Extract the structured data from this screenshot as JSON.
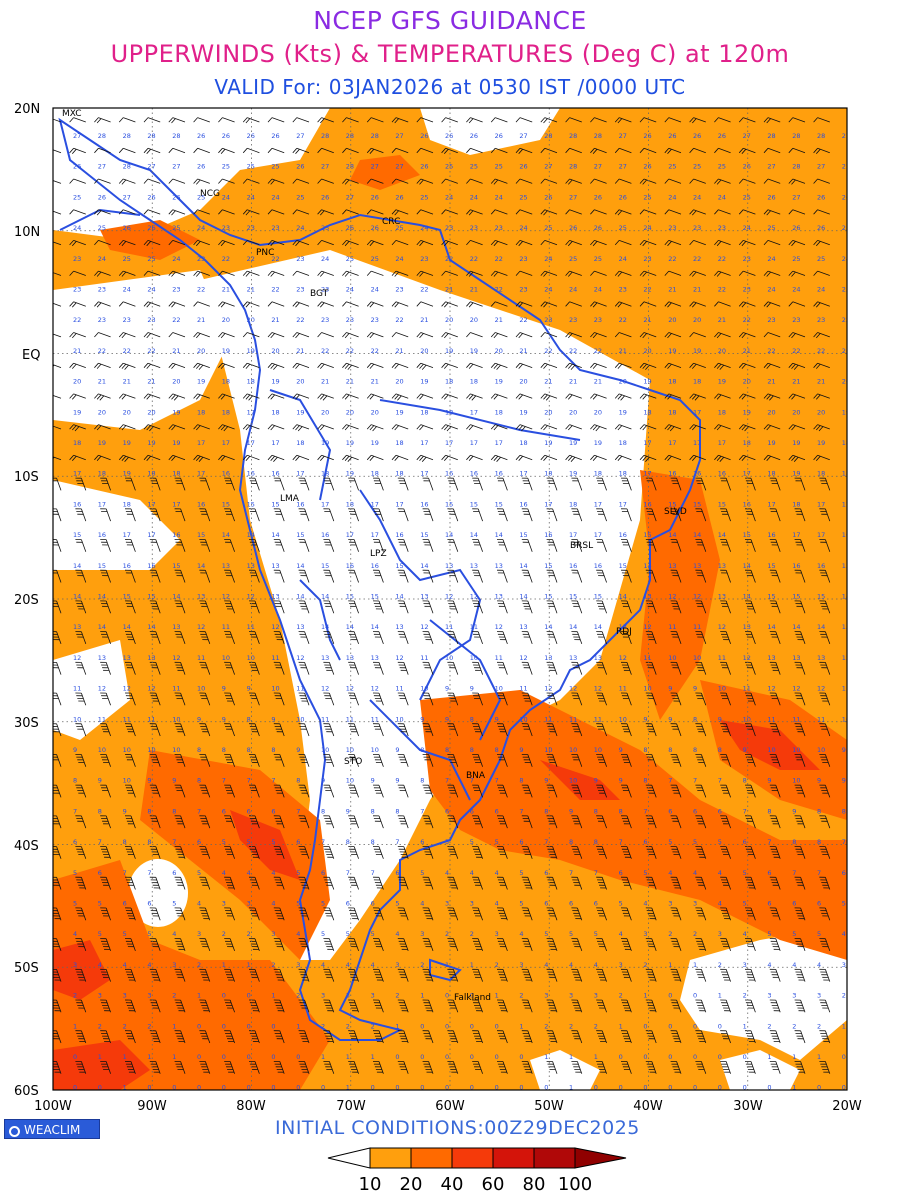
{
  "header": {
    "title": "NCEP GFS GUIDANCE",
    "subtitle": "UPPERWINDS (Kts) & TEMPERATURES (Deg C) at 120m",
    "valid": "VALID For: 03JAN2026 at 0530 IST /0000 UTC"
  },
  "map": {
    "lat_labels": [
      "20N",
      "10N",
      "EQ",
      "10S",
      "20S",
      "30S",
      "40S",
      "50S",
      "60S"
    ],
    "lon_labels": [
      "100W",
      "90W",
      "80W",
      "70W",
      "60W",
      "50W",
      "40W",
      "30W",
      "20W"
    ],
    "cities": [
      "MXC",
      "NCG",
      "PNC",
      "CRC",
      "BGT",
      "LMA",
      "LPZ",
      "BRSL",
      "SLVD",
      "RDJ",
      "STO",
      "BNA",
      "Falkland"
    ]
  },
  "footer": {
    "logo": "WEACLIM",
    "initial": "INITIAL  CONDITIONS:00Z29DEC2025"
  },
  "legend": {
    "ticks": [
      "10",
      "20",
      "40",
      "60",
      "80",
      "100"
    ],
    "colors": [
      "#ffffff",
      "#ff9f0d",
      "#ff6a00",
      "#f53a0a",
      "#d4140a",
      "#b00808",
      "#900000"
    ]
  },
  "colors": {
    "title": "#8a2be2",
    "subtitle": "#e0208a",
    "valid": "#1f4fe0",
    "coast": "#2a4fe0",
    "speed_band_1": "#ff9f0d",
    "speed_band_2": "#ff6a00",
    "speed_band_3": "#f53a0a"
  }
}
